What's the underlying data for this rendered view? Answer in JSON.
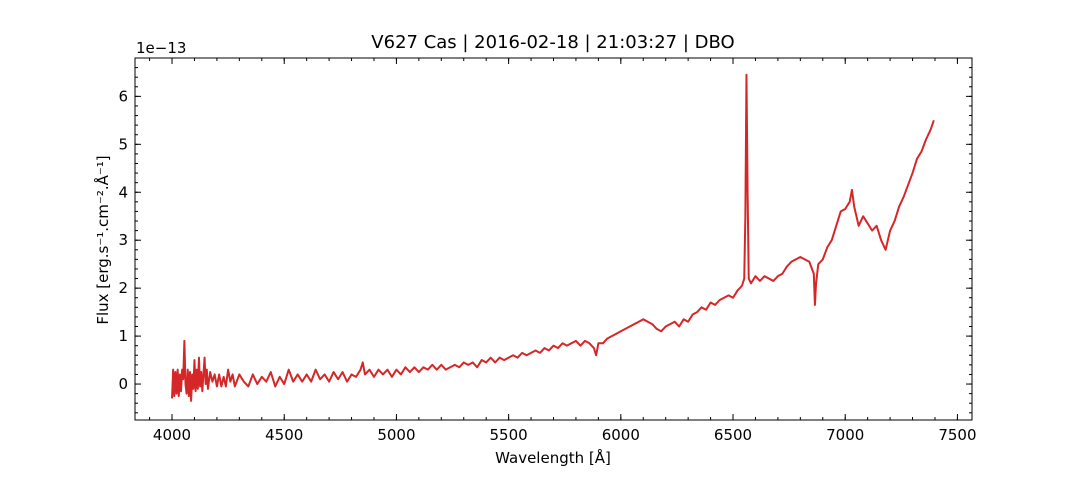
{
  "chart_data": {
    "type": "line",
    "title": "V627 Cas | 2016-02-18 | 21:03:27 | DBO",
    "xlabel": "Wavelength [Å]",
    "ylabel": "Flux [erg.s⁻¹.cm⁻².Å⁻¹]",
    "y_offset_label": "1e−13",
    "xlim": [
      3835,
      7565
    ],
    "ylim": [
      -0.75,
      6.8
    ],
    "x_ticks": [
      4000,
      4500,
      5000,
      5500,
      6000,
      6500,
      7000,
      7500
    ],
    "y_ticks": [
      0,
      1,
      2,
      3,
      4,
      5,
      6
    ],
    "grid": false,
    "series": [
      {
        "color": "#d62728",
        "points": [
          [
            4000,
            -0.3
          ],
          [
            4005,
            0.3
          ],
          [
            4010,
            -0.25
          ],
          [
            4015,
            0.25
          ],
          [
            4020,
            -0.2
          ],
          [
            4025,
            0.3
          ],
          [
            4030,
            -0.25
          ],
          [
            4035,
            0.2
          ],
          [
            4040,
            -0.15
          ],
          [
            4045,
            0.3
          ],
          [
            4050,
            0.1
          ],
          [
            4055,
            0.9
          ],
          [
            4060,
            0.0
          ],
          [
            4065,
            -0.2
          ],
          [
            4070,
            0.3
          ],
          [
            4075,
            -0.25
          ],
          [
            4080,
            0.25
          ],
          [
            4085,
            -0.35
          ],
          [
            4090,
            0.2
          ],
          [
            4095,
            -0.1
          ],
          [
            4100,
            0.5
          ],
          [
            4105,
            -0.15
          ],
          [
            4110,
            0.3
          ],
          [
            4115,
            -0.1
          ],
          [
            4120,
            0.55
          ],
          [
            4125,
            -0.05
          ],
          [
            4130,
            0.25
          ],
          [
            4135,
            -0.15
          ],
          [
            4140,
            0.2
          ],
          [
            4145,
            0.55
          ],
          [
            4150,
            0.0
          ],
          [
            4155,
            0.3
          ],
          [
            4160,
            -0.1
          ],
          [
            4170,
            0.25
          ],
          [
            4180,
            0.05
          ],
          [
            4190,
            0.2
          ],
          [
            4200,
            -0.05
          ],
          [
            4210,
            0.2
          ],
          [
            4220,
            -0.05
          ],
          [
            4230,
            0.15
          ],
          [
            4240,
            -0.05
          ],
          [
            4250,
            0.3
          ],
          [
            4260,
            0.05
          ],
          [
            4270,
            0.2
          ],
          [
            4280,
            -0.05
          ],
          [
            4300,
            0.2
          ],
          [
            4320,
            0.05
          ],
          [
            4340,
            -0.05
          ],
          [
            4360,
            0.2
          ],
          [
            4380,
            0.0
          ],
          [
            4400,
            0.15
          ],
          [
            4420,
            0.05
          ],
          [
            4440,
            0.25
          ],
          [
            4460,
            -0.05
          ],
          [
            4480,
            0.15
          ],
          [
            4500,
            0.0
          ],
          [
            4520,
            0.3
          ],
          [
            4540,
            0.05
          ],
          [
            4560,
            0.2
          ],
          [
            4580,
            0.05
          ],
          [
            4600,
            0.2
          ],
          [
            4620,
            0.05
          ],
          [
            4640,
            0.3
          ],
          [
            4660,
            0.1
          ],
          [
            4680,
            0.2
          ],
          [
            4700,
            0.05
          ],
          [
            4720,
            0.25
          ],
          [
            4740,
            0.1
          ],
          [
            4760,
            0.25
          ],
          [
            4780,
            0.05
          ],
          [
            4800,
            0.2
          ],
          [
            4820,
            0.15
          ],
          [
            4840,
            0.3
          ],
          [
            4850,
            0.45
          ],
          [
            4860,
            0.2
          ],
          [
            4880,
            0.3
          ],
          [
            4900,
            0.15
          ],
          [
            4920,
            0.3
          ],
          [
            4940,
            0.2
          ],
          [
            4960,
            0.3
          ],
          [
            4980,
            0.15
          ],
          [
            5000,
            0.3
          ],
          [
            5020,
            0.2
          ],
          [
            5040,
            0.35
          ],
          [
            5060,
            0.25
          ],
          [
            5080,
            0.35
          ],
          [
            5100,
            0.25
          ],
          [
            5120,
            0.35
          ],
          [
            5140,
            0.3
          ],
          [
            5160,
            0.4
          ],
          [
            5180,
            0.3
          ],
          [
            5200,
            0.4
          ],
          [
            5220,
            0.3
          ],
          [
            5240,
            0.35
          ],
          [
            5260,
            0.4
          ],
          [
            5280,
            0.35
          ],
          [
            5300,
            0.45
          ],
          [
            5320,
            0.4
          ],
          [
            5340,
            0.45
          ],
          [
            5360,
            0.35
          ],
          [
            5380,
            0.5
          ],
          [
            5400,
            0.45
          ],
          [
            5420,
            0.55
          ],
          [
            5440,
            0.45
          ],
          [
            5460,
            0.55
          ],
          [
            5480,
            0.5
          ],
          [
            5500,
            0.55
          ],
          [
            5520,
            0.6
          ],
          [
            5540,
            0.55
          ],
          [
            5560,
            0.65
          ],
          [
            5580,
            0.6
          ],
          [
            5600,
            0.65
          ],
          [
            5620,
            0.7
          ],
          [
            5640,
            0.65
          ],
          [
            5660,
            0.75
          ],
          [
            5680,
            0.7
          ],
          [
            5700,
            0.8
          ],
          [
            5720,
            0.75
          ],
          [
            5740,
            0.85
          ],
          [
            5760,
            0.8
          ],
          [
            5780,
            0.85
          ],
          [
            5800,
            0.9
          ],
          [
            5820,
            0.8
          ],
          [
            5840,
            0.9
          ],
          [
            5860,
            0.85
          ],
          [
            5880,
            0.75
          ],
          [
            5890,
            0.6
          ],
          [
            5900,
            0.85
          ],
          [
            5920,
            0.85
          ],
          [
            5940,
            0.95
          ],
          [
            5960,
            1.0
          ],
          [
            5980,
            1.05
          ],
          [
            6000,
            1.1
          ],
          [
            6020,
            1.15
          ],
          [
            6040,
            1.2
          ],
          [
            6060,
            1.25
          ],
          [
            6080,
            1.3
          ],
          [
            6100,
            1.35
          ],
          [
            6120,
            1.3
          ],
          [
            6140,
            1.25
          ],
          [
            6160,
            1.15
          ],
          [
            6180,
            1.1
          ],
          [
            6200,
            1.2
          ],
          [
            6220,
            1.25
          ],
          [
            6240,
            1.3
          ],
          [
            6260,
            1.2
          ],
          [
            6280,
            1.35
          ],
          [
            6300,
            1.3
          ],
          [
            6320,
            1.45
          ],
          [
            6340,
            1.5
          ],
          [
            6360,
            1.6
          ],
          [
            6380,
            1.55
          ],
          [
            6400,
            1.7
          ],
          [
            6420,
            1.65
          ],
          [
            6440,
            1.75
          ],
          [
            6460,
            1.8
          ],
          [
            6480,
            1.85
          ],
          [
            6500,
            1.8
          ],
          [
            6520,
            1.95
          ],
          [
            6540,
            2.05
          ],
          [
            6550,
            2.2
          ],
          [
            6555,
            3.5
          ],
          [
            6560,
            6.45
          ],
          [
            6565,
            4.0
          ],
          [
            6570,
            2.2
          ],
          [
            6580,
            2.1
          ],
          [
            6600,
            2.25
          ],
          [
            6620,
            2.15
          ],
          [
            6640,
            2.25
          ],
          [
            6660,
            2.2
          ],
          [
            6680,
            2.15
          ],
          [
            6700,
            2.25
          ],
          [
            6720,
            2.3
          ],
          [
            6740,
            2.45
          ],
          [
            6760,
            2.55
          ],
          [
            6780,
            2.6
          ],
          [
            6800,
            2.65
          ],
          [
            6820,
            2.6
          ],
          [
            6840,
            2.55
          ],
          [
            6860,
            2.3
          ],
          [
            6865,
            1.65
          ],
          [
            6870,
            2.1
          ],
          [
            6880,
            2.5
          ],
          [
            6900,
            2.6
          ],
          [
            6920,
            2.85
          ],
          [
            6940,
            3.0
          ],
          [
            6960,
            3.3
          ],
          [
            6980,
            3.6
          ],
          [
            7000,
            3.65
          ],
          [
            7020,
            3.8
          ],
          [
            7030,
            4.05
          ],
          [
            7040,
            3.7
          ],
          [
            7060,
            3.3
          ],
          [
            7080,
            3.5
          ],
          [
            7100,
            3.35
          ],
          [
            7120,
            3.2
          ],
          [
            7140,
            3.3
          ],
          [
            7160,
            3.0
          ],
          [
            7180,
            2.8
          ],
          [
            7200,
            3.2
          ],
          [
            7220,
            3.4
          ],
          [
            7240,
            3.7
          ],
          [
            7260,
            3.9
          ],
          [
            7280,
            4.15
          ],
          [
            7300,
            4.4
          ],
          [
            7320,
            4.7
          ],
          [
            7340,
            4.85
          ],
          [
            7360,
            5.1
          ],
          [
            7380,
            5.3
          ],
          [
            7395,
            5.5
          ]
        ]
      }
    ]
  }
}
